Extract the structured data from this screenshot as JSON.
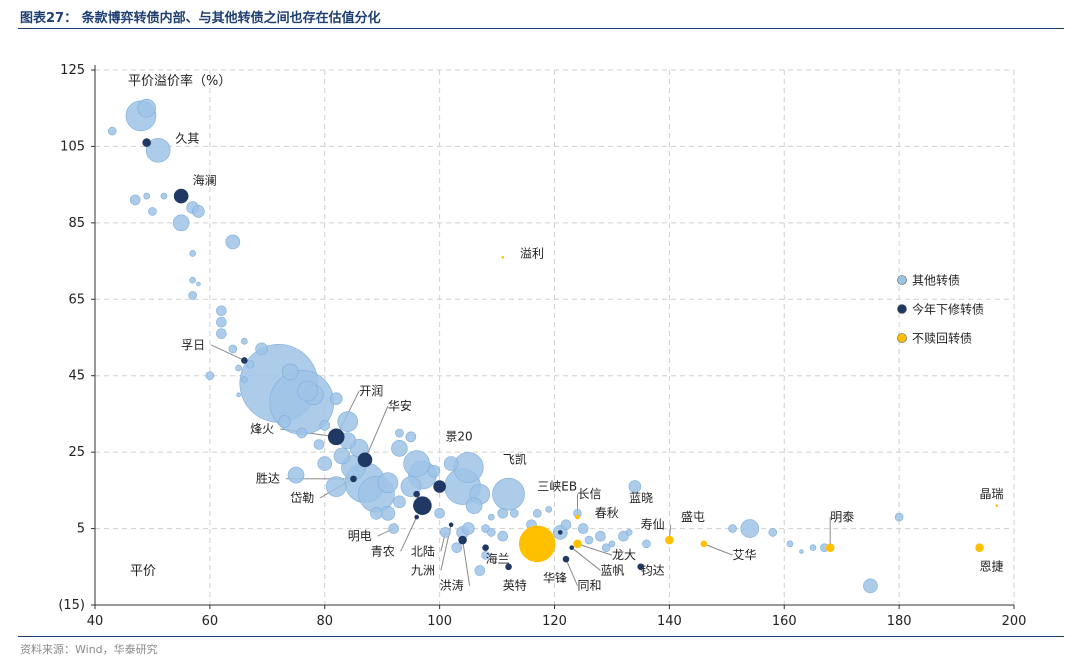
{
  "title": "图表27：  条款博弈转债内部、与其他转债之间也存在估值分化",
  "source": "资料来源：Wind，华泰研究",
  "chart_data": {
    "type": "scatter",
    "xlabel": "平价",
    "ylabel": "平价溢价率（%）",
    "xlim": [
      40,
      200
    ],
    "ylim": [
      -15,
      125
    ],
    "x_ticks": [
      "40",
      "60",
      "80",
      "100",
      "120",
      "140",
      "160",
      "180",
      "200"
    ],
    "y_ticks": [
      "(15)",
      "5",
      "25",
      "45",
      "65",
      "85",
      "105",
      "125"
    ],
    "grid": true,
    "legend_position": "right",
    "legend": [
      {
        "name": "其他转债",
        "color": "#9dc3e6"
      },
      {
        "name": "今年下修转债",
        "color": "#1f3864"
      },
      {
        "name": "不赎回转债",
        "color": "#ffc000"
      }
    ],
    "series": [
      {
        "name": "其他转债",
        "color": "#9dc3e6",
        "points": [
          {
            "x": 43,
            "y": 109,
            "r": 4
          },
          {
            "x": 48,
            "y": 113,
            "r": 15
          },
          {
            "x": 49,
            "y": 115,
            "r": 9
          },
          {
            "x": 51,
            "y": 104,
            "r": 12
          },
          {
            "x": 47,
            "y": 91,
            "r": 5
          },
          {
            "x": 49,
            "y": 92,
            "r": 3
          },
          {
            "x": 52,
            "y": 92,
            "r": 3
          },
          {
            "x": 50,
            "y": 88,
            "r": 4
          },
          {
            "x": 55,
            "y": 85,
            "r": 8
          },
          {
            "x": 57,
            "y": 89,
            "r": 6
          },
          {
            "x": 58,
            "y": 88,
            "r": 6
          },
          {
            "x": 64,
            "y": 80,
            "r": 7
          },
          {
            "x": 57,
            "y": 77,
            "r": 3
          },
          {
            "x": 57,
            "y": 70,
            "r": 3
          },
          {
            "x": 58,
            "y": 69,
            "r": 2
          },
          {
            "x": 57,
            "y": 66,
            "r": 4
          },
          {
            "x": 62,
            "y": 62,
            "r": 5
          },
          {
            "x": 62,
            "y": 59,
            "r": 5
          },
          {
            "x": 62,
            "y": 56,
            "r": 5
          },
          {
            "x": 64,
            "y": 52,
            "r": 4
          },
          {
            "x": 66,
            "y": 54,
            "r": 3
          },
          {
            "x": 69,
            "y": 52,
            "r": 6
          },
          {
            "x": 67,
            "y": 48,
            "r": 4
          },
          {
            "x": 65,
            "y": 47,
            "r": 3
          },
          {
            "x": 60,
            "y": 45,
            "r": 4
          },
          {
            "x": 66,
            "y": 44,
            "r": 3
          },
          {
            "x": 65,
            "y": 40,
            "r": 2
          },
          {
            "x": 72,
            "y": 43,
            "r": 39
          },
          {
            "x": 76,
            "y": 38,
            "r": 32
          },
          {
            "x": 78,
            "y": 40,
            "r": 10
          },
          {
            "x": 74,
            "y": 46,
            "r": 8
          },
          {
            "x": 77,
            "y": 41,
            "r": 10
          },
          {
            "x": 73,
            "y": 33,
            "r": 6
          },
          {
            "x": 80,
            "y": 32,
            "r": 5
          },
          {
            "x": 79,
            "y": 27,
            "r": 5
          },
          {
            "x": 82,
            "y": 39,
            "r": 6
          },
          {
            "x": 84,
            "y": 33,
            "r": 10
          },
          {
            "x": 84,
            "y": 28,
            "r": 8
          },
          {
            "x": 83,
            "y": 24,
            "r": 8
          },
          {
            "x": 86,
            "y": 26,
            "r": 9
          },
          {
            "x": 85,
            "y": 21,
            "r": 12
          },
          {
            "x": 87,
            "y": 17,
            "r": 20
          },
          {
            "x": 89,
            "y": 14,
            "r": 18
          },
          {
            "x": 91,
            "y": 17,
            "r": 10
          },
          {
            "x": 80,
            "y": 22,
            "r": 7
          },
          {
            "x": 82,
            "y": 16,
            "r": 10
          },
          {
            "x": 75,
            "y": 19,
            "r": 8
          },
          {
            "x": 76,
            "y": 30,
            "r": 5
          },
          {
            "x": 93,
            "y": 30,
            "r": 4
          },
          {
            "x": 95,
            "y": 29,
            "r": 5
          },
          {
            "x": 93,
            "y": 26,
            "r": 8
          },
          {
            "x": 96,
            "y": 22,
            "r": 13
          },
          {
            "x": 97,
            "y": 19,
            "r": 14
          },
          {
            "x": 95,
            "y": 16,
            "r": 10
          },
          {
            "x": 93,
            "y": 12,
            "r": 6
          },
          {
            "x": 91,
            "y": 9,
            "r": 7
          },
          {
            "x": 92,
            "y": 5,
            "r": 5
          },
          {
            "x": 89,
            "y": 9,
            "r": 6
          },
          {
            "x": 102,
            "y": 22,
            "r": 7
          },
          {
            "x": 104,
            "y": 16,
            "r": 18
          },
          {
            "x": 105,
            "y": 21,
            "r": 15
          },
          {
            "x": 107,
            "y": 14,
            "r": 10
          },
          {
            "x": 106,
            "y": 11,
            "r": 8
          },
          {
            "x": 99,
            "y": 20,
            "r": 6
          },
          {
            "x": 100,
            "y": 9,
            "r": 5
          },
          {
            "x": 101,
            "y": 4,
            "r": 5
          },
          {
            "x": 104,
            "y": 4,
            "r": 6
          },
          {
            "x": 105,
            "y": 5,
            "r": 6
          },
          {
            "x": 103,
            "y": 0,
            "r": 5
          },
          {
            "x": 108,
            "y": 5,
            "r": 4
          },
          {
            "x": 109,
            "y": 4,
            "r": 4
          },
          {
            "x": 111,
            "y": 3,
            "r": 5
          },
          {
            "x": 108,
            "y": -2,
            "r": 4
          },
          {
            "x": 107,
            "y": -6,
            "r": 5
          },
          {
            "x": 112,
            "y": 14,
            "r": 16
          },
          {
            "x": 113,
            "y": 9,
            "r": 4
          },
          {
            "x": 111,
            "y": 9,
            "r": 5
          },
          {
            "x": 109,
            "y": 8,
            "r": 3
          },
          {
            "x": 116,
            "y": 6,
            "r": 5
          },
          {
            "x": 117,
            "y": 9,
            "r": 4
          },
          {
            "x": 119,
            "y": 10,
            "r": 3
          },
          {
            "x": 121,
            "y": 4,
            "r": 7
          },
          {
            "x": 122,
            "y": 6,
            "r": 5
          },
          {
            "x": 124,
            "y": 9,
            "r": 4
          },
          {
            "x": 125,
            "y": 5,
            "r": 5
          },
          {
            "x": 126,
            "y": 2,
            "r": 4
          },
          {
            "x": 128,
            "y": 3,
            "r": 5
          },
          {
            "x": 129,
            "y": 0,
            "r": 4
          },
          {
            "x": 130,
            "y": 1,
            "r": 3
          },
          {
            "x": 132,
            "y": 3,
            "r": 5
          },
          {
            "x": 134,
            "y": 16,
            "r": 6
          },
          {
            "x": 136,
            "y": 1,
            "r": 4
          },
          {
            "x": 133,
            "y": 4,
            "r": 3
          },
          {
            "x": 151,
            "y": 5,
            "r": 4
          },
          {
            "x": 154,
            "y": 5,
            "r": 9
          },
          {
            "x": 158,
            "y": 4,
            "r": 4
          },
          {
            "x": 161,
            "y": 1,
            "r": 3
          },
          {
            "x": 163,
            "y": -1,
            "r": 2
          },
          {
            "x": 165,
            "y": 0,
            "r": 3
          },
          {
            "x": 167,
            "y": 0,
            "r": 4
          },
          {
            "x": 175,
            "y": -10,
            "r": 7
          },
          {
            "x": 180,
            "y": 8,
            "r": 4
          }
        ]
      },
      {
        "name": "今年下修转债",
        "color": "#1f3864",
        "points": [
          {
            "x": 49,
            "y": 106,
            "r": 4
          },
          {
            "x": 55,
            "y": 92,
            "r": 7
          },
          {
            "x": 66,
            "y": 49,
            "r": 3
          },
          {
            "x": 82,
            "y": 29,
            "r": 8
          },
          {
            "x": 85,
            "y": 18,
            "r": 3
          },
          {
            "x": 87,
            "y": 23,
            "r": 7
          },
          {
            "x": 96,
            "y": 14,
            "r": 3
          },
          {
            "x": 97,
            "y": 11,
            "r": 9
          },
          {
            "x": 100,
            "y": 16,
            "r": 6
          },
          {
            "x": 96,
            "y": 8,
            "r": 2
          },
          {
            "x": 102,
            "y": 6,
            "r": 2
          },
          {
            "x": 104,
            "y": 2,
            "r": 4
          },
          {
            "x": 108,
            "y": 0,
            "r": 3
          },
          {
            "x": 112,
            "y": -5,
            "r": 3
          },
          {
            "x": 122,
            "y": -3,
            "r": 3
          },
          {
            "x": 121,
            "y": 4,
            "r": 2
          },
          {
            "x": 123,
            "y": 0,
            "r": 2
          },
          {
            "x": 135,
            "y": -5,
            "r": 3
          }
        ]
      },
      {
        "name": "不赎回转债",
        "color": "#ffc000",
        "points": [
          {
            "x": 117,
            "y": 1,
            "r": 18
          },
          {
            "x": 111,
            "y": 76,
            "r": 1
          },
          {
            "x": 124,
            "y": 8,
            "r": 2
          },
          {
            "x": 124,
            "y": 1,
            "r": 4
          },
          {
            "x": 140,
            "y": 2,
            "r": 4
          },
          {
            "x": 146,
            "y": 1,
            "r": 3
          },
          {
            "x": 168,
            "y": 0,
            "r": 4
          },
          {
            "x": 194,
            "y": 0,
            "r": 4
          },
          {
            "x": 197,
            "y": 11,
            "r": 1
          }
        ]
      }
    ],
    "annotations": [
      {
        "text": "久其",
        "x": 49,
        "y": 106,
        "lx": 54,
        "ly": 106
      },
      {
        "text": "海澜",
        "x": 55,
        "y": 92,
        "lx": 57,
        "ly": 95
      },
      {
        "text": "溢利",
        "x": 111,
        "y": 76,
        "lx": 114,
        "ly": 76
      },
      {
        "text": "孚日",
        "x": 66,
        "y": 49,
        "lx": 55,
        "ly": 52,
        "line": true
      },
      {
        "text": "开润",
        "x": 82,
        "y": 29,
        "lx": 86,
        "ly": 40,
        "line": true
      },
      {
        "text": "华安",
        "x": 87,
        "y": 23,
        "lx": 91,
        "ly": 36,
        "line": true
      },
      {
        "text": "烽火",
        "x": 82,
        "y": 29,
        "lx": 67,
        "ly": 30,
        "line": true
      },
      {
        "text": "景20",
        "x": 100,
        "y": 16,
        "lx": 101,
        "ly": 28
      },
      {
        "text": "飞凯",
        "x": 105,
        "y": 21,
        "lx": 111,
        "ly": 22
      },
      {
        "text": "胜达",
        "x": 85,
        "y": 18,
        "lx": 68,
        "ly": 17,
        "line": true
      },
      {
        "text": "岱勒",
        "x": 86,
        "y": 19,
        "lx": 74,
        "ly": 12,
        "line": true
      },
      {
        "text": "三峡EB",
        "x": 111,
        "y": 9,
        "lx": 117,
        "ly": 15
      },
      {
        "text": "长信",
        "x": 124,
        "y": 8,
        "lx": 124,
        "ly": 13,
        "line": true
      },
      {
        "text": "蓝晓",
        "x": 134,
        "y": 16,
        "lx": 133,
        "ly": 12
      },
      {
        "text": "春秋",
        "x": 124,
        "y": 5,
        "lx": 127,
        "ly": 8
      },
      {
        "text": "寿仙",
        "x": 140,
        "y": 2,
        "lx": 135,
        "ly": 5,
        "line": true
      },
      {
        "text": "盛屯",
        "x": 151,
        "y": 5,
        "lx": 142,
        "ly": 7
      },
      {
        "text": "明泰",
        "x": 168,
        "y": 0,
        "lx": 168,
        "ly": 7,
        "line": true
      },
      {
        "text": "晶瑞",
        "x": 197,
        "y": 11,
        "lx": 194,
        "ly": 13
      },
      {
        "text": "明电",
        "x": 92,
        "y": 5,
        "lx": 84,
        "ly": 2,
        "line": true
      },
      {
        "text": "青农",
        "x": 96,
        "y": 8,
        "lx": 88,
        "ly": -2,
        "line": true
      },
      {
        "text": "北陆",
        "x": 101,
        "y": 4,
        "lx": 95,
        "ly": -2,
        "line": true
      },
      {
        "text": "九洲",
        "x": 102,
        "y": 6,
        "lx": 95,
        "ly": -7,
        "line": true
      },
      {
        "text": "洪涛",
        "x": 104,
        "y": 2,
        "lx": 100,
        "ly": -11,
        "line": true
      },
      {
        "text": "海兰",
        "x": 108,
        "y": 0,
        "lx": 108,
        "ly": -4
      },
      {
        "text": "英特",
        "x": 112,
        "y": -5,
        "lx": 111,
        "ly": -11
      },
      {
        "text": "华锋",
        "x": 117,
        "y": 1,
        "lx": 118,
        "ly": -9
      },
      {
        "text": "同和",
        "x": 122,
        "y": -3,
        "lx": 124,
        "ly": -11,
        "line": true
      },
      {
        "text": "蓝帆",
        "x": 123,
        "y": 0,
        "lx": 128,
        "ly": -7,
        "line": true
      },
      {
        "text": "龙大",
        "x": 124,
        "y": 1,
        "lx": 130,
        "ly": -3,
        "line": true
      },
      {
        "text": "钧达",
        "x": 135,
        "y": -5,
        "lx": 135,
        "ly": -7
      },
      {
        "text": "艾华",
        "x": 146,
        "y": 1,
        "lx": 151,
        "ly": -3,
        "line": true
      },
      {
        "text": "恩捷",
        "x": 194,
        "y": 0,
        "lx": 194,
        "ly": -6
      }
    ]
  }
}
